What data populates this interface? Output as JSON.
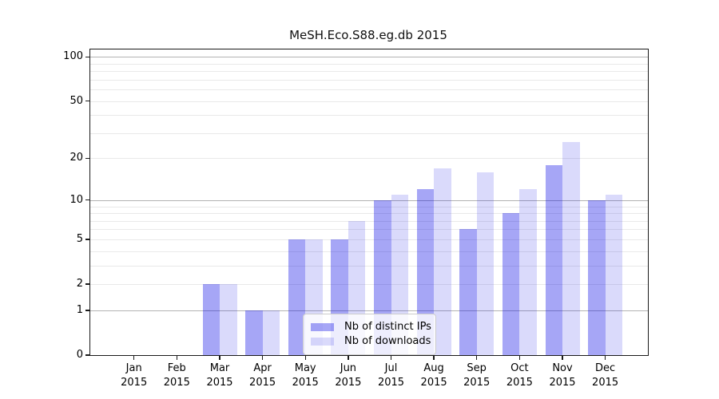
{
  "title": "MeSH.Eco.S88.eg.db 2015",
  "chart_data": {
    "type": "bar",
    "title": "MeSH.Eco.S88.eg.db 2015",
    "categories": [
      "Jan",
      "Feb",
      "Mar",
      "Apr",
      "May",
      "Jun",
      "Jul",
      "Aug",
      "Sep",
      "Oct",
      "Nov",
      "Dec"
    ],
    "x_label_second_line": "2015",
    "series": [
      {
        "name": "Nb of distinct IPs",
        "values": [
          0,
          0,
          2,
          1,
          5,
          5,
          10,
          12,
          6,
          8,
          18,
          10
        ],
        "color": "rgba(0,0,230,0.35)",
        "color_hex_on_white": "#a6a6f6"
      },
      {
        "name": "Nb of downloads",
        "values": [
          0,
          0,
          2,
          1,
          5,
          7,
          11,
          17,
          16,
          12,
          26,
          11
        ],
        "color": "rgba(0,0,230,0.145)",
        "color_hex_on_white": "#dadaf9"
      }
    ],
    "yscale": "log1p",
    "ytick_labels": [
      "0",
      "1",
      "2",
      "5",
      "10",
      "20",
      "50",
      "100"
    ],
    "ytick_values": [
      0,
      1,
      2,
      5,
      10,
      20,
      50,
      100
    ],
    "ylim": [
      0,
      112
    ],
    "xlabel": "",
    "ylabel": "",
    "grid": true,
    "legend_position": "inside lower center"
  }
}
